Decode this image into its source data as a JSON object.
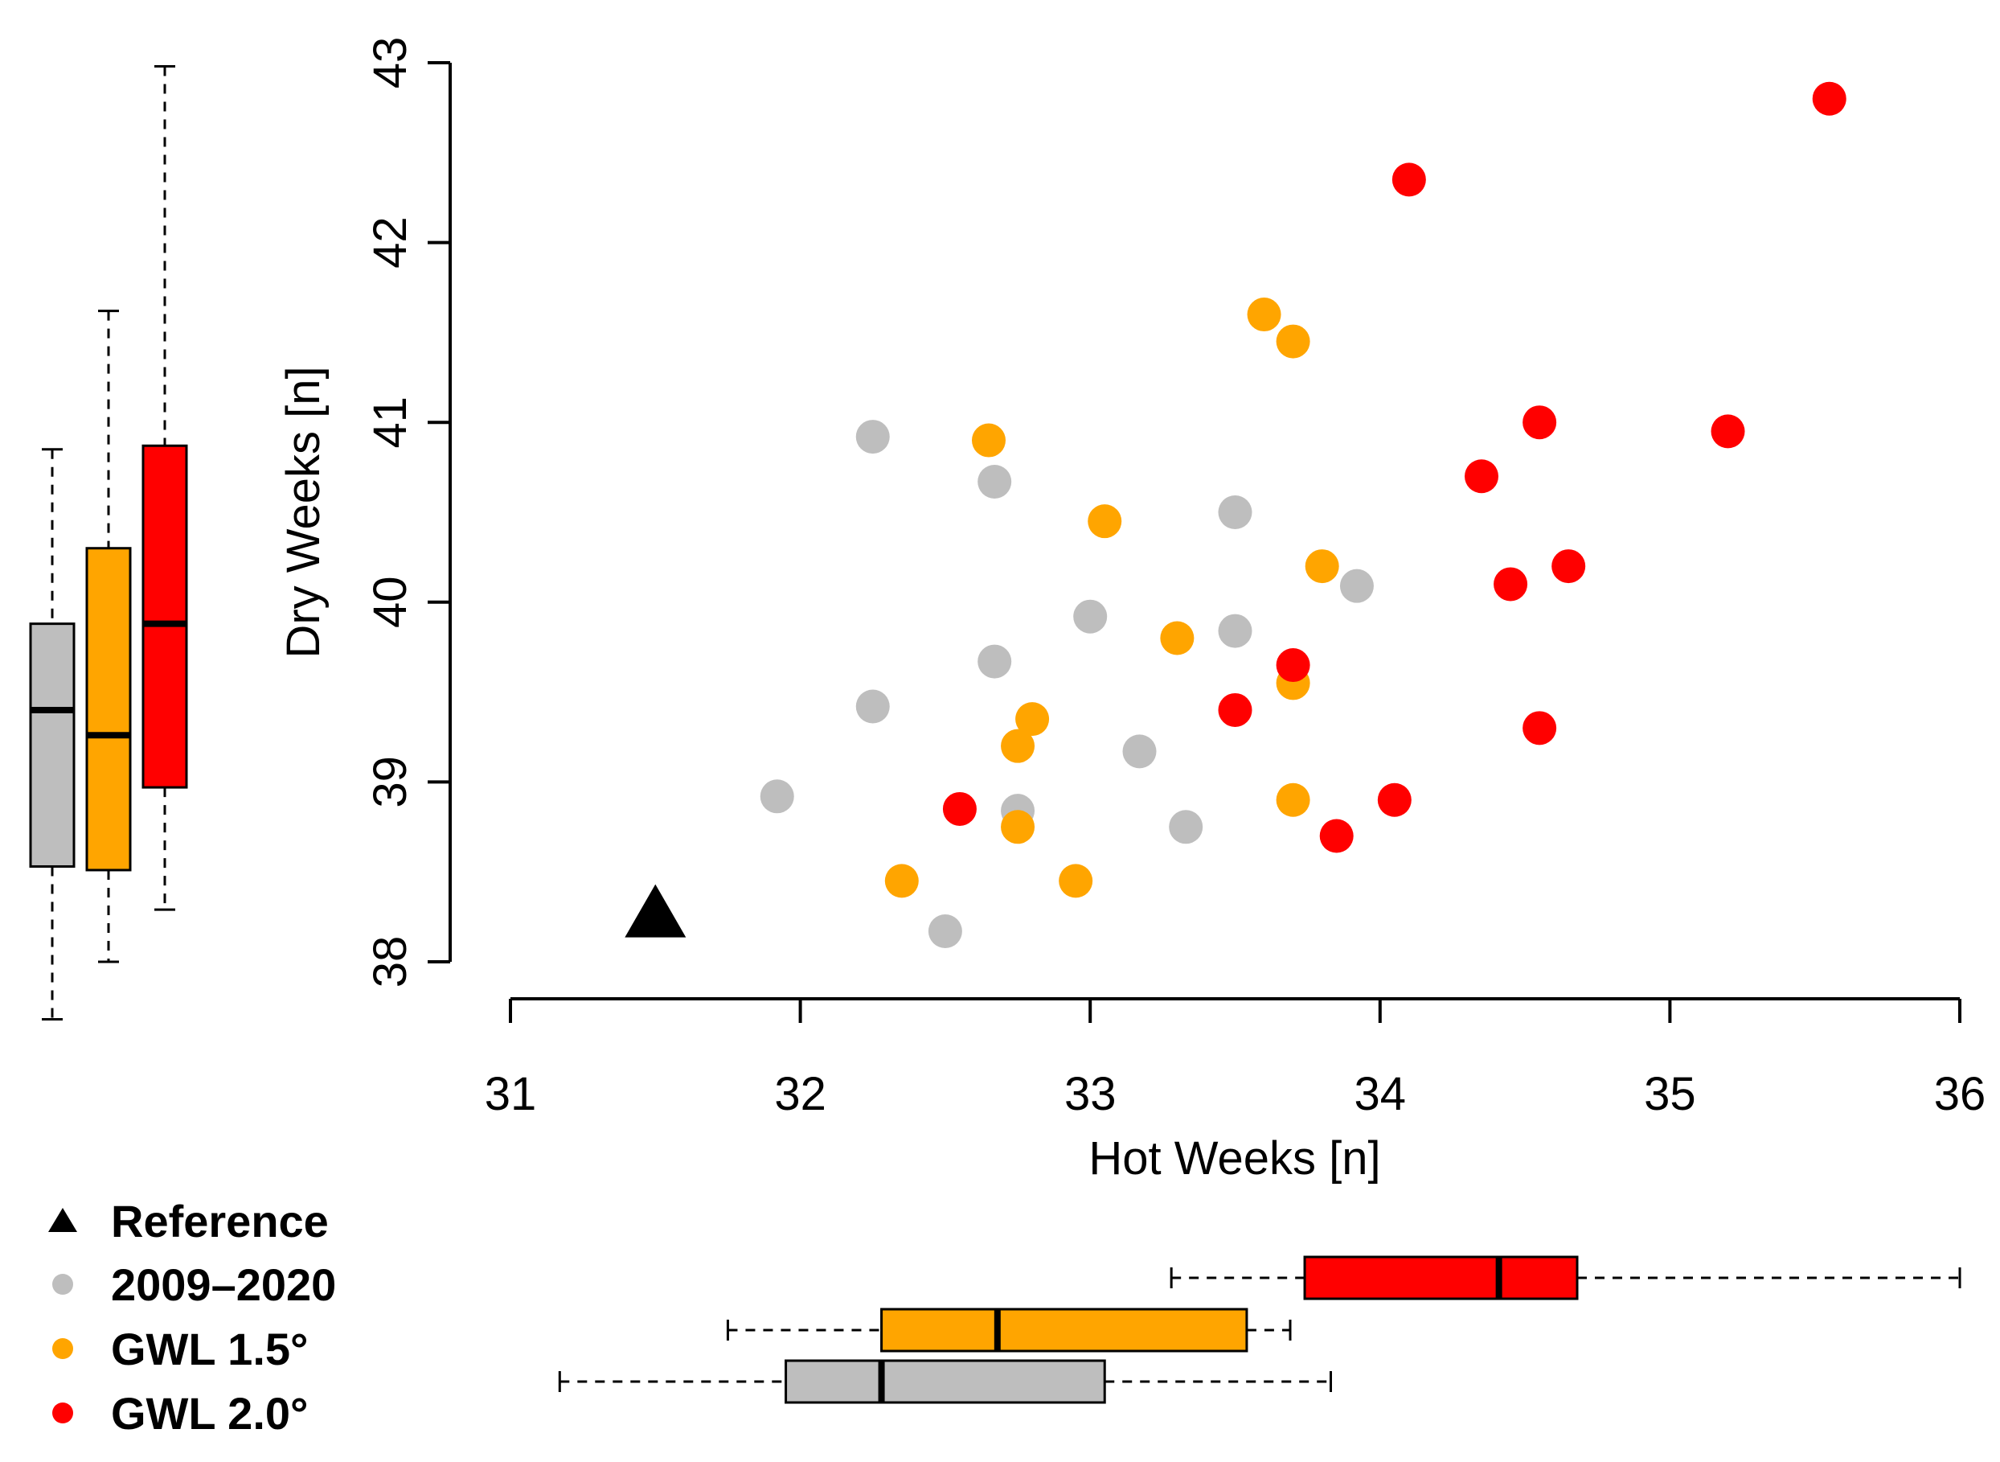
{
  "chart_data": {
    "type": "scatter",
    "xlabel": "Hot Weeks [n]",
    "ylabel": "Dry Weeks [n]",
    "xlim": [
      31,
      36
    ],
    "ylim": [
      38,
      43
    ],
    "xticks": [
      "31",
      "32",
      "33",
      "34",
      "35",
      "36"
    ],
    "yticks": [
      "38",
      "39",
      "40",
      "41",
      "42",
      "43"
    ],
    "marginal_boxplots": true,
    "legend": {
      "placement": "bottom-left"
    },
    "series": [
      {
        "name": "Reference",
        "marker": "triangle",
        "color": "#000000",
        "points": [
          {
            "x": 31.5,
            "y": 38.27
          }
        ]
      },
      {
        "name": "2009–2020",
        "marker": "circle",
        "color": "#BEBEBE",
        "points": [
          {
            "x": 32.25,
            "y": 40.92
          },
          {
            "x": 32.67,
            "y": 40.67
          },
          {
            "x": 33.5,
            "y": 40.5
          },
          {
            "x": 33.92,
            "y": 40.09
          },
          {
            "x": 33.0,
            "y": 39.92
          },
          {
            "x": 33.5,
            "y": 39.84
          },
          {
            "x": 32.67,
            "y": 39.67
          },
          {
            "x": 32.25,
            "y": 39.42
          },
          {
            "x": 33.17,
            "y": 39.17
          },
          {
            "x": 31.92,
            "y": 38.92
          },
          {
            "x": 32.75,
            "y": 38.84
          },
          {
            "x": 33.33,
            "y": 38.75
          },
          {
            "x": 32.5,
            "y": 38.17
          }
        ]
      },
      {
        "name": "GWL 1.5°",
        "marker": "circle",
        "color": "#FFA500",
        "points": [
          {
            "x": 33.6,
            "y": 41.6
          },
          {
            "x": 33.7,
            "y": 41.45
          },
          {
            "x": 32.65,
            "y": 40.9
          },
          {
            "x": 33.05,
            "y": 40.45
          },
          {
            "x": 33.8,
            "y": 40.2
          },
          {
            "x": 33.3,
            "y": 39.8
          },
          {
            "x": 33.7,
            "y": 39.55
          },
          {
            "x": 32.8,
            "y": 39.35
          },
          {
            "x": 32.75,
            "y": 39.2
          },
          {
            "x": 33.7,
            "y": 38.9
          },
          {
            "x": 32.75,
            "y": 38.75
          },
          {
            "x": 32.35,
            "y": 38.45
          },
          {
            "x": 32.95,
            "y": 38.45
          }
        ]
      },
      {
        "name": "GWL 2.0°",
        "marker": "circle",
        "color": "#FF0000",
        "points": [
          {
            "x": 35.55,
            "y": 42.8
          },
          {
            "x": 34.1,
            "y": 42.35
          },
          {
            "x": 34.55,
            "y": 41.0
          },
          {
            "x": 35.2,
            "y": 40.95
          },
          {
            "x": 34.35,
            "y": 40.7
          },
          {
            "x": 34.65,
            "y": 40.2
          },
          {
            "x": 34.45,
            "y": 40.1
          },
          {
            "x": 33.7,
            "y": 39.65
          },
          {
            "x": 33.5,
            "y": 39.4
          },
          {
            "x": 34.55,
            "y": 39.3
          },
          {
            "x": 34.05,
            "y": 38.9
          },
          {
            "x": 32.55,
            "y": 38.85
          },
          {
            "x": 33.85,
            "y": 38.7
          }
        ]
      }
    ],
    "boxplots_y": [
      {
        "series": "2009–2020",
        "whisker_low": 37.68,
        "q1": 38.53,
        "median": 39.4,
        "q3": 39.88,
        "whisker_high": 40.85
      },
      {
        "series": "GWL 1.5°",
        "whisker_low": 38.0,
        "q1": 38.51,
        "median": 39.26,
        "q3": 40.3,
        "whisker_high": 41.62
      },
      {
        "series": "GWL 2.0°",
        "whisker_low": 38.29,
        "q1": 38.97,
        "median": 39.88,
        "q3": 40.87,
        "whisker_high": 42.98
      }
    ],
    "boxplots_x": [
      {
        "series": "2009–2020",
        "whisker_low": 31.17,
        "q1": 31.95,
        "median": 32.28,
        "q3": 33.05,
        "whisker_high": 33.83
      },
      {
        "series": "GWL 1.5°",
        "whisker_low": 31.75,
        "q1": 32.28,
        "median": 32.68,
        "q3": 33.54,
        "whisker_high": 33.69
      },
      {
        "series": "GWL 2.0°",
        "whisker_low": 33.28,
        "q1": 33.74,
        "median": 34.41,
        "q3": 34.68,
        "whisker_high": 36.0
      }
    ]
  }
}
